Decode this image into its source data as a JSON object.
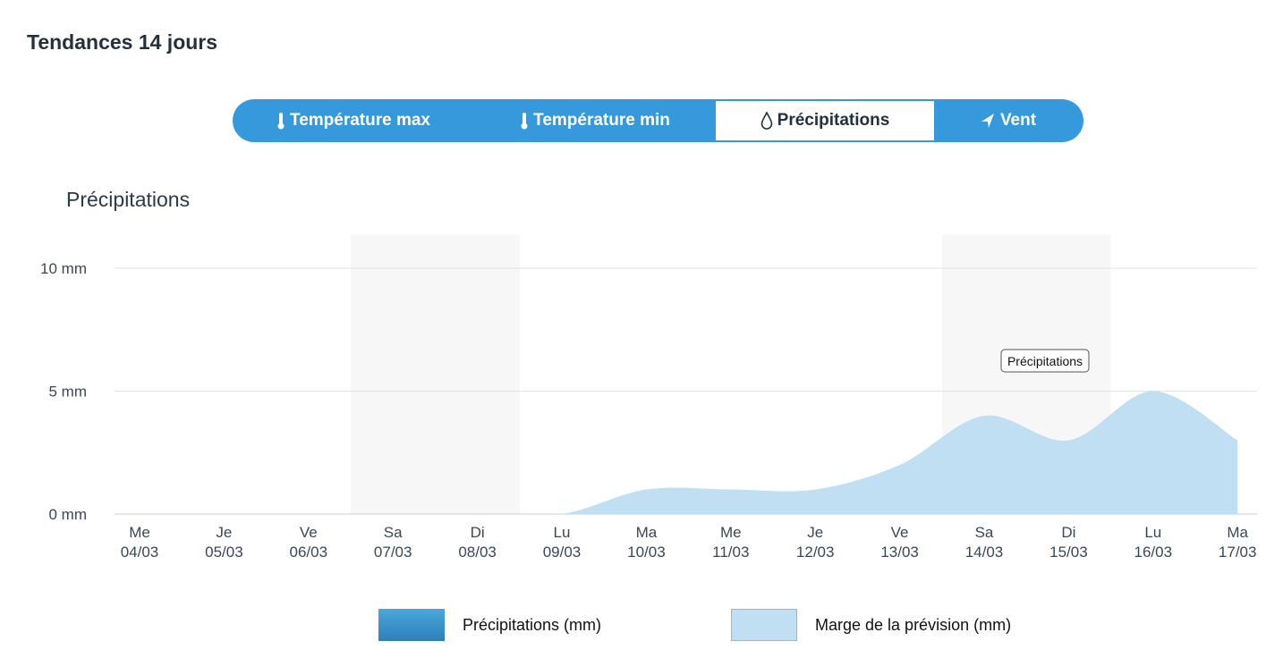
{
  "page_title": "Tendances 14 jours",
  "tabs": [
    {
      "label": "Température max",
      "icon": "thermometer-icon",
      "active": false
    },
    {
      "label": "Température min",
      "icon": "thermometer-icon",
      "active": false
    },
    {
      "label": "Précipitations",
      "icon": "droplet-icon",
      "active": true
    },
    {
      "label": "Vent",
      "icon": "wind-direction-arrow-icon",
      "active": false
    }
  ],
  "chart_title": "Précipitations",
  "tooltip": "Précipitations",
  "colors": {
    "accent": "#3699db",
    "area": "#c1dff3",
    "weekend": "#f7f7f7",
    "series": "#2e86c1"
  },
  "chart_data": {
    "type": "area",
    "title": "Précipitations",
    "ylim": [
      0,
      10
    ],
    "yticks": [
      {
        "v": 0,
        "label": "0 mm"
      },
      {
        "v": 5,
        "label": "5 mm"
      },
      {
        "v": 10,
        "label": "10 mm"
      }
    ],
    "categories": [
      [
        "Me",
        "04/03"
      ],
      [
        "Je",
        "05/03"
      ],
      [
        "Ve",
        "06/03"
      ],
      [
        "Sa",
        "07/03"
      ],
      [
        "Di",
        "08/03"
      ],
      [
        "Lu",
        "09/03"
      ],
      [
        "Ma",
        "10/03"
      ],
      [
        "Me",
        "11/03"
      ],
      [
        "Je",
        "12/03"
      ],
      [
        "Ve",
        "13/03"
      ],
      [
        "Sa",
        "14/03"
      ],
      [
        "Di",
        "15/03"
      ],
      [
        "Lu",
        "16/03"
      ],
      [
        "Ma",
        "17/03"
      ]
    ],
    "weekends": [
      [
        3,
        4
      ],
      [
        10,
        11
      ]
    ],
    "series": [
      {
        "name": "Précipitations (mm)",
        "values": [
          0,
          0,
          0,
          0,
          0,
          0,
          0,
          0,
          0,
          0,
          0,
          0,
          0,
          0
        ]
      },
      {
        "name": "Marge de la prévision (mm)",
        "values": [
          0,
          0,
          0,
          0,
          0,
          0,
          1.0,
          1.0,
          1.0,
          2.0,
          4.0,
          3.0,
          5.0,
          3.0
        ]
      }
    ],
    "grid": true,
    "legend": "bottom"
  }
}
